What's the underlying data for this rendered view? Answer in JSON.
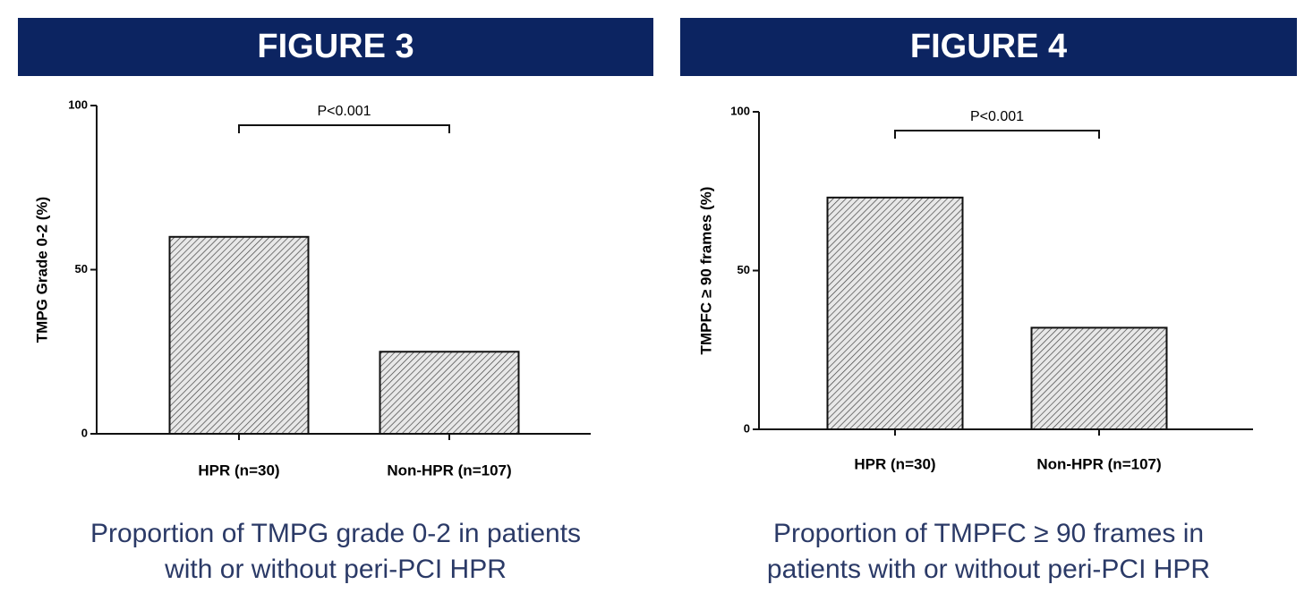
{
  "chart_data": [
    {
      "type": "bar",
      "title": "FIGURE 3",
      "ylabel": "TMPG Grade 0-2 (%)",
      "categories": [
        "HPR (n=30)",
        "Non-HPR (n=107)"
      ],
      "values": [
        60,
        25
      ],
      "ylim": [
        0,
        100
      ],
      "yticks": [
        0,
        50,
        100
      ],
      "annotation": "P<0.001",
      "caption": [
        "Proportion of TMPG grade 0-2 in patients",
        "with or without peri-PCI HPR"
      ]
    },
    {
      "type": "bar",
      "title": "FIGURE 4",
      "ylabel": "TMPFC ≥ 90 frames (%)",
      "categories": [
        "HPR (n=30)",
        "Non-HPR (n=107)"
      ],
      "values": [
        73,
        32
      ],
      "ylim": [
        0,
        100
      ],
      "yticks": [
        0,
        50,
        100
      ],
      "annotation": "P<0.001",
      "caption": [
        "Proportion of TMPFC ≥ 90 frames in",
        "patients with or without peri-PCI HPR"
      ]
    }
  ]
}
